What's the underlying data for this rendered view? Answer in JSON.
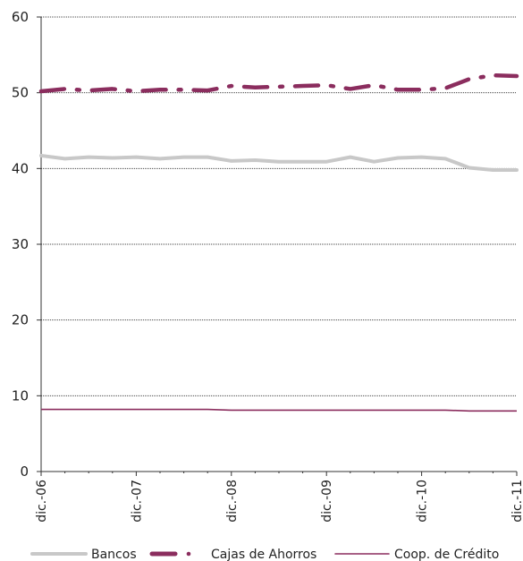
{
  "chart_data": {
    "type": "line",
    "x": [
      "dic.-06",
      "mar.-07",
      "jun.-07",
      "sep.-07",
      "dic.-07",
      "mar.-08",
      "jun.-08",
      "sep.-08",
      "dic.-08",
      "mar.-09",
      "jun.-09",
      "sep.-09",
      "dic.-09",
      "mar.-10",
      "jun.-10",
      "sep.-10",
      "dic.-10",
      "mar.-11",
      "jun.-11",
      "sep.-11",
      "dic.-11"
    ],
    "x_tick_labels": [
      "dic.-06",
      "dic.-07",
      "dic.-08",
      "dic.-09",
      "dic.-10",
      "dic.-11"
    ],
    "ylim": [
      0,
      60
    ],
    "y_ticks": [
      0,
      10,
      20,
      30,
      40,
      50,
      60
    ],
    "grid": "horizontal dotted",
    "legend_position": "bottom",
    "series": [
      {
        "name": "Bancos",
        "color": "#c8c8c8",
        "style": "solid-thick",
        "values": [
          41.7,
          41.3,
          41.5,
          41.4,
          41.5,
          41.3,
          41.5,
          41.5,
          41.0,
          41.1,
          40.9,
          40.9,
          40.9,
          41.5,
          40.9,
          41.4,
          41.5,
          41.3,
          40.1,
          39.8,
          39.8
        ]
      },
      {
        "name": "Cajas de Ahorros",
        "color": "#8b2d5e",
        "style": "dash-dot-thick",
        "values": [
          50.2,
          50.5,
          50.3,
          50.5,
          50.2,
          50.4,
          50.4,
          50.3,
          50.9,
          50.7,
          50.8,
          50.9,
          51.0,
          50.5,
          51.0,
          50.4,
          50.4,
          50.6,
          51.8,
          52.3,
          52.2
        ]
      },
      {
        "name": "Coop. de Crédito",
        "color": "#8b2d5e",
        "style": "solid-thin",
        "values": [
          8.2,
          8.2,
          8.2,
          8.2,
          8.2,
          8.2,
          8.2,
          8.2,
          8.1,
          8.1,
          8.1,
          8.1,
          8.1,
          8.1,
          8.1,
          8.1,
          8.1,
          8.1,
          8.0,
          8.0,
          8.0
        ]
      }
    ]
  }
}
